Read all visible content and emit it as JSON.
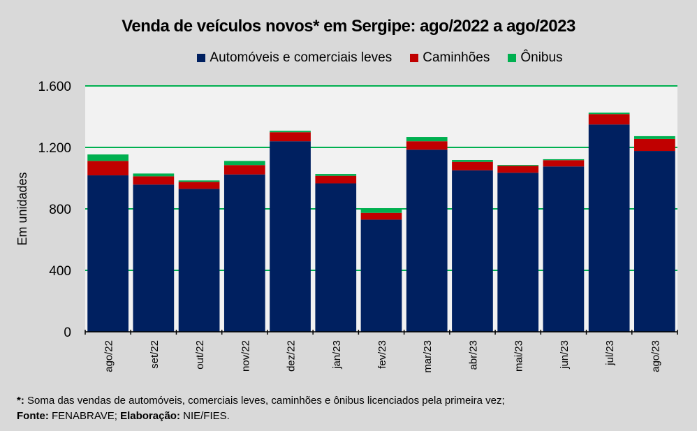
{
  "chart_data": {
    "type": "bar",
    "stacked": true,
    "title": "Venda de veículos novos* em Sergipe: ago/2022 a ago/2023",
    "xlabel": "",
    "ylabel": "Em unidades",
    "ylim": [
      0,
      1600
    ],
    "yticks": [
      0,
      400,
      800,
      1200,
      1600
    ],
    "ytick_labels": [
      "0",
      "400",
      "800",
      "1.200",
      "1.600"
    ],
    "grid": true,
    "legend_position": "top",
    "categories": [
      "ago/22",
      "set/22",
      "out/22",
      "nov/22",
      "dez/22",
      "jan/23",
      "fev/23",
      "mar/23",
      "abr/23",
      "mai/23",
      "jun/23",
      "jul/23",
      "ago/23"
    ],
    "series": [
      {
        "name": "Automóveis e comerciais leves",
        "color": "#002060",
        "values": [
          1018,
          958,
          930,
          1024,
          1240,
          966,
          730,
          1185,
          1051,
          1035,
          1076,
          1349,
          1177
        ]
      },
      {
        "name": "Caminhões",
        "color": "#c00000",
        "values": [
          94,
          54,
          46,
          61,
          59,
          49,
          44,
          55,
          55,
          45,
          41,
          68,
          78
        ]
      },
      {
        "name": "Ônibus",
        "color": "#00b050",
        "values": [
          42,
          18,
          9,
          27,
          9,
          12,
          29,
          28,
          12,
          6,
          6,
          9,
          18
        ]
      }
    ]
  },
  "footnote": {
    "note_marker": "*:",
    "note_text": " Soma das vendas de automóveis, comerciais leves, caminhões e ônibus licenciados pela primeira vez;",
    "source_label": "Fonte:",
    "source_text": " FENABRAVE; ",
    "elab_label": "Elaboração:",
    "elab_text": " NIE/FIES."
  },
  "colors": {
    "background": "#d9d9d9",
    "plot_bg": "#f2f2f2",
    "grid": "#00b050"
  }
}
